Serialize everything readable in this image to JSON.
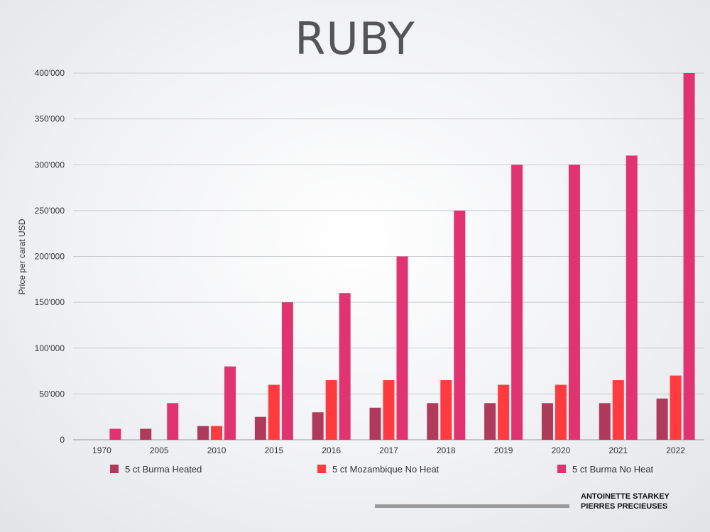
{
  "chart_data": {
    "type": "bar",
    "title": "RUBY",
    "ylabel": "Price per carat USD",
    "xlabel": "",
    "ylim": [
      0,
      400000
    ],
    "yticks": [
      {
        "value": 0,
        "label": "0"
      },
      {
        "value": 50000,
        "label": "50'000"
      },
      {
        "value": 100000,
        "label": "100'000"
      },
      {
        "value": 150000,
        "label": "150'000"
      },
      {
        "value": 200000,
        "label": "200'000"
      },
      {
        "value": 250000,
        "label": "250'000"
      },
      {
        "value": 300000,
        "label": "300'000"
      },
      {
        "value": 350000,
        "label": "350'000"
      },
      {
        "value": 400000,
        "label": "400'000"
      }
    ],
    "grid": true,
    "legend_position": "bottom",
    "categories": [
      "1970",
      "2005",
      "2010",
      "2015",
      "2016",
      "2017",
      "2018",
      "2019",
      "2020",
      "2021",
      "2022"
    ],
    "series": [
      {
        "name": "5 ct Burma Heated",
        "color": "#b03a5b",
        "values": [
          0,
          12000,
          15000,
          25000,
          30000,
          35000,
          40000,
          40000,
          40000,
          40000,
          45000
        ]
      },
      {
        "name": "5 ct Mozambique No Heat",
        "color": "#ff3b3f",
        "values": [
          0,
          0,
          15000,
          60000,
          65000,
          65000,
          65000,
          60000,
          60000,
          65000,
          70000
        ]
      },
      {
        "name": "5 ct Burma No Heat",
        "color": "#e0336f",
        "values": [
          12000,
          40000,
          80000,
          150000,
          160000,
          200000,
          250000,
          300000,
          300000,
          310000,
          400000
        ]
      }
    ]
  },
  "branding": {
    "line1": "ANTOINETTE STARKEY",
    "line2": "PIERRES PRECIEUSES"
  }
}
